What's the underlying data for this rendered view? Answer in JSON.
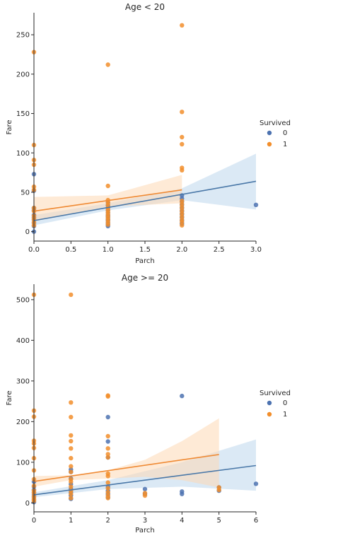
{
  "colors": {
    "survived_0": "#4c72b0",
    "survived_1": "#f28e2b",
    "ci_0": "#a6c8e6",
    "ci_1": "#fdd9b5",
    "line_0": "#4a78a8",
    "line_1": "#ef8a34"
  },
  "chart_data": [
    {
      "type": "scatter",
      "title": "Age < 20",
      "xlabel": "Parch",
      "ylabel": "Fare",
      "xlim": [
        0,
        3
      ],
      "ylim": [
        -12,
        278
      ],
      "xticks": [
        0,
        0.5,
        1,
        1.5,
        2,
        2.5,
        3
      ],
      "xtick_labels": [
        "0.0",
        "0.5",
        "1.0",
        "1.5",
        "2.0",
        "2.5",
        "3.0"
      ],
      "yticks": [
        0,
        50,
        100,
        150,
        200,
        250
      ],
      "ytick_labels": [
        "0",
        "50",
        "100",
        "150",
        "200",
        "250"
      ],
      "grid": false,
      "legend": {
        "title": "Survived",
        "placement": "right"
      },
      "series": [
        {
          "name": "0",
          "points": [
            [
              0,
              0
            ],
            [
              0,
              7
            ],
            [
              0,
              11
            ],
            [
              0,
              15
            ],
            [
              0,
              18
            ],
            [
              0,
              21
            ],
            [
              0,
              27
            ],
            [
              0,
              30
            ],
            [
              0,
              52
            ],
            [
              0,
              73
            ],
            [
              1,
              7
            ],
            [
              1,
              9
            ],
            [
              1,
              11
            ],
            [
              1,
              14
            ],
            [
              1,
              16
            ],
            [
              1,
              19
            ],
            [
              1,
              21
            ],
            [
              1,
              24
            ],
            [
              1,
              27
            ],
            [
              1,
              30
            ],
            [
              1,
              33
            ],
            [
              1,
              37
            ],
            [
              2,
              10
            ],
            [
              2,
              14
            ],
            [
              2,
              18
            ],
            [
              2,
              22
            ],
            [
              2,
              26
            ],
            [
              2,
              30
            ],
            [
              2,
              34
            ],
            [
              2,
              38
            ],
            [
              2,
              42
            ],
            [
              2,
              46
            ],
            [
              3,
              34
            ]
          ],
          "fit": {
            "x": [
              0,
              3
            ],
            "y": [
              14,
              64
            ]
          },
          "ci_upper": [
            [
              0,
              21
            ],
            [
              1,
              36
            ],
            [
              2,
              55
            ],
            [
              3,
              99
            ]
          ],
          "ci_lower": [
            [
              0,
              8
            ],
            [
              1,
              27
            ],
            [
              2,
              40
            ],
            [
              3,
              28
            ]
          ]
        },
        {
          "name": "1",
          "points": [
            [
              0,
              8
            ],
            [
              0,
              12
            ],
            [
              0,
              16
            ],
            [
              0,
              20
            ],
            [
              0,
              26
            ],
            [
              0,
              30
            ],
            [
              0,
              53
            ],
            [
              0,
              57
            ],
            [
              0,
              85
            ],
            [
              0,
              91
            ],
            [
              0,
              110
            ],
            [
              0,
              228
            ],
            [
              1,
              9
            ],
            [
              1,
              12
            ],
            [
              1,
              15
            ],
            [
              1,
              18
            ],
            [
              1,
              21
            ],
            [
              1,
              24
            ],
            [
              1,
              27
            ],
            [
              1,
              30
            ],
            [
              1,
              34
            ],
            [
              1,
              37
            ],
            [
              1,
              40
            ],
            [
              1,
              58
            ],
            [
              1,
              212
            ],
            [
              2,
              8
            ],
            [
              2,
              12
            ],
            [
              2,
              15
            ],
            [
              2,
              19
            ],
            [
              2,
              23
            ],
            [
              2,
              27
            ],
            [
              2,
              31
            ],
            [
              2,
              35
            ],
            [
              2,
              39
            ],
            [
              2,
              78
            ],
            [
              2,
              81
            ],
            [
              2,
              111
            ],
            [
              2,
              120
            ],
            [
              2,
              152
            ],
            [
              2,
              262
            ]
          ],
          "fit": {
            "x": [
              0,
              2
            ],
            "y": [
              26,
              53
            ]
          },
          "ci_upper": [
            [
              0,
              44
            ],
            [
              1,
              46
            ],
            [
              2,
              72
            ]
          ],
          "ci_lower": [
            [
              0,
              13
            ],
            [
              1,
              32
            ],
            [
              2,
              36
            ]
          ]
        }
      ]
    },
    {
      "type": "scatter",
      "title": "Age >= 20",
      "xlabel": "Parch",
      "ylabel": "Fare",
      "xlim": [
        0,
        6
      ],
      "ylim": [
        -22,
        538
      ],
      "xticks": [
        0,
        1,
        2,
        3,
        4,
        5,
        6
      ],
      "xtick_labels": [
        "0",
        "1",
        "2",
        "3",
        "4",
        "5",
        "6"
      ],
      "yticks": [
        0,
        100,
        200,
        300,
        400,
        500
      ],
      "ytick_labels": [
        "0",
        "100",
        "200",
        "300",
        "400",
        "500"
      ],
      "grid": false,
      "legend": {
        "title": "Survived",
        "placement": "right"
      },
      "series": [
        {
          "name": "0",
          "points": [
            [
              0,
              2
            ],
            [
              0,
              8
            ],
            [
              0,
              14
            ],
            [
              0,
              20
            ],
            [
              0,
              26
            ],
            [
              0,
              32
            ],
            [
              0,
              40
            ],
            [
              0,
              52
            ],
            [
              1,
              10
            ],
            [
              1,
              18
            ],
            [
              1,
              26
            ],
            [
              1,
              34
            ],
            [
              1,
              46
            ],
            [
              1,
              60
            ],
            [
              1,
              76
            ],
            [
              1,
              82
            ],
            [
              2,
              14
            ],
            [
              2,
              22
            ],
            [
              2,
              30
            ],
            [
              2,
              40
            ],
            [
              2,
              112
            ],
            [
              2,
              151
            ],
            [
              2,
              211
            ],
            [
              3,
              22
            ],
            [
              3,
              34
            ],
            [
              4,
              22
            ],
            [
              4,
              28
            ],
            [
              4,
              263
            ],
            [
              5,
              30
            ],
            [
              5,
              38
            ],
            [
              6,
              47
            ]
          ],
          "fit": {
            "x": [
              0,
              6
            ],
            "y": [
              20,
              92
            ]
          },
          "ci_upper": [
            [
              0,
              26
            ],
            [
              2,
              56
            ],
            [
              4,
              100
            ],
            [
              6,
              156
            ]
          ],
          "ci_lower": [
            [
              0,
              14
            ],
            [
              2,
              34
            ],
            [
              4,
              40
            ],
            [
              6,
              30
            ]
          ]
        },
        {
          "name": "1",
          "points": [
            [
              0,
              5
            ],
            [
              0,
              10
            ],
            [
              0,
              16
            ],
            [
              0,
              24
            ],
            [
              0,
              30
            ],
            [
              0,
              42
            ],
            [
              0,
              58
            ],
            [
              0,
              80
            ],
            [
              0,
              110
            ],
            [
              0,
              135
            ],
            [
              0,
              146
            ],
            [
              0,
              153
            ],
            [
              0,
              212
            ],
            [
              0,
              227
            ],
            [
              0,
              512
            ],
            [
              1,
              12
            ],
            [
              1,
              22
            ],
            [
              1,
              30
            ],
            [
              1,
              40
            ],
            [
              1,
              52
            ],
            [
              1,
              58
            ],
            [
              1,
              76
            ],
            [
              1,
              90
            ],
            [
              1,
              110
            ],
            [
              1,
              134
            ],
            [
              1,
              152
            ],
            [
              1,
              166
            ],
            [
              1,
              211
            ],
            [
              1,
              247
            ],
            [
              1,
              512
            ],
            [
              2,
              12
            ],
            [
              2,
              18
            ],
            [
              2,
              26
            ],
            [
              2,
              36
            ],
            [
              2,
              50
            ],
            [
              2,
              66
            ],
            [
              2,
              72
            ],
            [
              2,
              112
            ],
            [
              2,
              120
            ],
            [
              2,
              134
            ],
            [
              2,
              164
            ],
            [
              2,
              262
            ],
            [
              2,
              264
            ],
            [
              3,
              18
            ],
            [
              3,
              24
            ],
            [
              5,
              32
            ],
            [
              5,
              38
            ]
          ],
          "fit": {
            "x": [
              0,
              5
            ],
            "y": [
              53,
              119
            ]
          },
          "ci_upper": [
            [
              0,
              66
            ],
            [
              1,
              68
            ],
            [
              2,
              80
            ],
            [
              3,
              106
            ],
            [
              4,
              152
            ],
            [
              5,
              208
            ]
          ],
          "ci_lower": [
            [
              0,
              40
            ],
            [
              1,
              56
            ],
            [
              2,
              60
            ],
            [
              3,
              64
            ],
            [
              4,
              56
            ],
            [
              5,
              38
            ]
          ]
        }
      ]
    }
  ]
}
